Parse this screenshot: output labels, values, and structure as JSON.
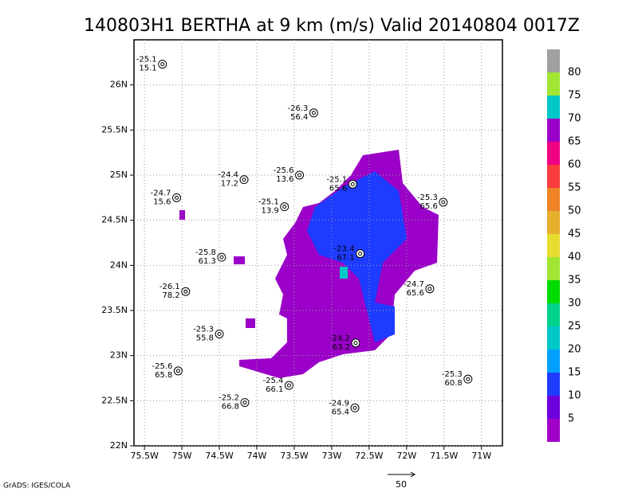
{
  "title": "140803H1 BERTHA at 9 km (m/s) Valid 20140804 0017Z",
  "map": {
    "xlim": [
      -75.64,
      -70.72
    ],
    "ylim": [
      22,
      26.5
    ],
    "xticks": [
      {
        "value": -75.5,
        "label": "75.5W"
      },
      {
        "value": -75,
        "label": "75W"
      },
      {
        "value": -74.5,
        "label": "74.5W"
      },
      {
        "value": -74,
        "label": "74W"
      },
      {
        "value": -73.5,
        "label": "73.5W"
      },
      {
        "value": -73,
        "label": "73W"
      },
      {
        "value": -72.5,
        "label": "72.5W"
      },
      {
        "value": -72,
        "label": "72W"
      },
      {
        "value": -71.5,
        "label": "71.5W"
      },
      {
        "value": -71,
        "label": "71W"
      }
    ],
    "yticks": [
      {
        "value": 22,
        "label": "22N"
      },
      {
        "value": 22.5,
        "label": "22.5N"
      },
      {
        "value": 23,
        "label": "23N"
      },
      {
        "value": 23.5,
        "label": "23.5N"
      },
      {
        "value": 24,
        "label": "24N"
      },
      {
        "value": 24.5,
        "label": "24.5N"
      },
      {
        "value": 25,
        "label": "25N"
      },
      {
        "value": 25.5,
        "label": "25.5N"
      },
      {
        "value": 26,
        "label": "26N"
      }
    ]
  },
  "stations": [
    {
      "lon": -75.26,
      "lat": 26.23,
      "temperature": -25.1,
      "wind": 15.1
    },
    {
      "lon": -73.24,
      "lat": 25.69,
      "temperature": -26.3,
      "wind": 56.4
    },
    {
      "lon": -74.17,
      "lat": 24.95,
      "temperature": -24.4,
      "wind": 17.2
    },
    {
      "lon": -73.43,
      "lat": 25.0,
      "temperature": -25.6,
      "wind": 13.6
    },
    {
      "lon": -72.72,
      "lat": 24.9,
      "temperature": -25.1,
      "wind": 65.6
    },
    {
      "lon": -75.07,
      "lat": 24.75,
      "temperature": -24.7,
      "wind": 15.6
    },
    {
      "lon": -73.63,
      "lat": 24.65,
      "temperature": -25.1,
      "wind": 13.9
    },
    {
      "lon": -71.51,
      "lat": 24.7,
      "temperature": -25.3,
      "wind": 65.6
    },
    {
      "lon": -72.62,
      "lat": 24.13,
      "temperature": -23.4,
      "wind": 67.1
    },
    {
      "lon": -74.47,
      "lat": 24.09,
      "temperature": -25.8,
      "wind": 61.3
    },
    {
      "lon": -74.95,
      "lat": 23.71,
      "temperature": -26.1,
      "wind": 78.2
    },
    {
      "lon": -71.69,
      "lat": 23.74,
      "temperature": -24.7,
      "wind": 65.6
    },
    {
      "lon": -74.5,
      "lat": 23.24,
      "temperature": -25.3,
      "wind": 55.8
    },
    {
      "lon": -72.68,
      "lat": 23.14,
      "temperature": -24.2,
      "wind": 63.2
    },
    {
      "lon": -75.05,
      "lat": 22.83,
      "temperature": -25.6,
      "wind": 65.8
    },
    {
      "lon": -73.57,
      "lat": 22.67,
      "temperature": -25.4,
      "wind": 66.1
    },
    {
      "lon": -74.16,
      "lat": 22.48,
      "temperature": -25.2,
      "wind": 66.8
    },
    {
      "lon": -72.69,
      "lat": 22.42,
      "temperature": -24.9,
      "wind": 65.4
    },
    {
      "lon": -71.18,
      "lat": 22.74,
      "temperature": -25.3,
      "wind": 60.8
    }
  ],
  "colorbar": {
    "levels": [
      5,
      10,
      15,
      20,
      25,
      30,
      35,
      40,
      45,
      50,
      55,
      60,
      65,
      70,
      75,
      80
    ],
    "colors": [
      "#a000c8",
      "#6e00dc",
      "#1e3cff",
      "#00a0ff",
      "#00c8c8",
      "#00d28c",
      "#00dc00",
      "#a0e632",
      "#e6dc32",
      "#e6af2d",
      "#f08228",
      "#fa3c3c",
      "#f00082",
      "#9b00c8",
      "#00c8c8",
      "#a0e632",
      "#a0a0a0"
    ]
  },
  "scale_label": "50",
  "footer": "GrADS: IGES/COLA"
}
